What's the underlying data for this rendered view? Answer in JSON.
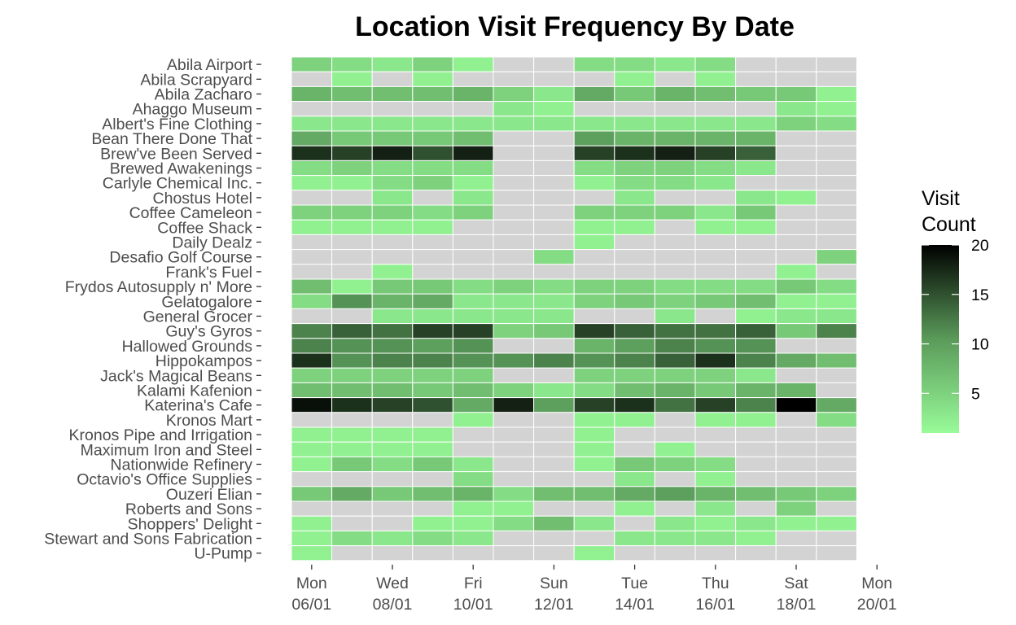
{
  "chart_data": {
    "type": "heatmap",
    "title": "Location Visit Frequency By Date",
    "xlabel": "",
    "ylabel": "",
    "dates": [
      "06/01",
      "07/01",
      "08/01",
      "09/01",
      "10/01",
      "11/01",
      "12/01",
      "13/01",
      "14/01",
      "15/01",
      "16/01",
      "17/01",
      "18/01",
      "19/01"
    ],
    "x_ticks": [
      {
        "day": "Mon",
        "date": "06/01",
        "index": 0
      },
      {
        "day": "Wed",
        "date": "08/01",
        "index": 2
      },
      {
        "day": "Fri",
        "date": "10/01",
        "index": 4
      },
      {
        "day": "Sun",
        "date": "12/01",
        "index": 6
      },
      {
        "day": "Tue",
        "date": "14/01",
        "index": 8
      },
      {
        "day": "Thu",
        "date": "16/01",
        "index": 10
      },
      {
        "day": "Sat",
        "date": "18/01",
        "index": 12
      },
      {
        "day": "Mon",
        "date": "20/01",
        "index": 14
      }
    ],
    "locations": [
      "Abila Airport",
      "Abila Scrapyard",
      "Abila Zacharo",
      "Ahaggo Museum",
      "Albert's Fine Clothing",
      "Bean There Done That",
      "Brew've Been Served",
      "Brewed Awakenings",
      "Carlyle Chemical Inc.",
      "Chostus Hotel",
      "Coffee Cameleon",
      "Coffee Shack",
      "Daily Dealz",
      "Desafio Golf Course",
      "Frank's Fuel",
      "Frydos Autosupply n' More",
      "Gelatogalore",
      "General Grocer",
      "Guy's Gyros",
      "Hallowed Grounds",
      "Hippokampos",
      "Jack's Magical Beans",
      "Kalami Kafenion",
      "Katerina's Cafe",
      "Kronos Mart",
      "Kronos Pipe and Irrigation",
      "Maximum Iron and Steel",
      "Nationwide Refinery",
      "Octavio's Office Supplies",
      "Ouzeri Elian",
      "Roberts and Sons",
      "Shoppers' Delight",
      "Stewart and Sons Fabrication",
      "U-Pump"
    ],
    "values": [
      [
        5,
        4,
        3,
        5,
        2,
        null,
        null,
        4,
        4,
        3,
        4,
        null,
        null,
        null
      ],
      [
        null,
        2,
        null,
        2,
        null,
        null,
        null,
        null,
        2,
        null,
        2,
        null,
        null,
        null
      ],
      [
        8,
        7,
        7,
        7,
        8,
        5,
        3,
        9,
        6,
        8,
        7,
        6,
        6,
        2
      ],
      [
        null,
        null,
        null,
        null,
        null,
        3,
        2,
        null,
        null,
        null,
        null,
        null,
        3,
        2
      ],
      [
        3,
        3,
        3,
        3,
        3,
        3,
        3,
        3,
        3,
        3,
        3,
        3,
        5,
        4
      ],
      [
        9,
        6,
        6,
        6,
        7,
        null,
        null,
        10,
        8,
        8,
        8,
        8,
        null,
        null
      ],
      [
        17,
        16,
        18,
        15,
        18,
        null,
        null,
        16,
        17,
        18,
        16,
        14,
        null,
        null
      ],
      [
        4,
        5,
        4,
        4,
        4,
        null,
        null,
        4,
        5,
        5,
        4,
        3,
        null,
        null
      ],
      [
        2,
        2,
        4,
        5,
        2,
        null,
        null,
        2,
        4,
        4,
        3,
        null,
        null,
        null
      ],
      [
        null,
        null,
        3,
        null,
        3,
        null,
        null,
        null,
        3,
        null,
        null,
        3,
        2,
        null
      ],
      [
        5,
        5,
        5,
        4,
        5,
        null,
        null,
        5,
        5,
        5,
        3,
        6,
        null,
        null
      ],
      [
        2,
        2,
        2,
        2,
        null,
        null,
        null,
        2,
        2,
        null,
        2,
        2,
        null,
        null
      ],
      [
        null,
        null,
        null,
        null,
        null,
        null,
        null,
        2,
        null,
        null,
        null,
        null,
        null,
        null
      ],
      [
        null,
        null,
        null,
        null,
        null,
        null,
        4,
        null,
        null,
        null,
        null,
        null,
        null,
        5
      ],
      [
        null,
        null,
        2,
        null,
        null,
        null,
        null,
        null,
        null,
        null,
        null,
        null,
        2,
        null
      ],
      [
        7,
        2,
        6,
        6,
        4,
        5,
        4,
        5,
        5,
        4,
        4,
        4,
        6,
        4
      ],
      [
        4,
        11,
        8,
        9,
        3,
        3,
        3,
        5,
        6,
        5,
        6,
        7,
        2,
        2
      ],
      [
        null,
        null,
        3,
        3,
        3,
        3,
        3,
        null,
        null,
        3,
        null,
        2,
        3,
        3
      ],
      [
        12,
        14,
        13,
        16,
        16,
        5,
        6,
        16,
        14,
        13,
        13,
        14,
        6,
        12
      ],
      [
        12,
        11,
        11,
        10,
        11,
        null,
        null,
        8,
        10,
        12,
        11,
        11,
        null,
        null
      ],
      [
        17,
        11,
        12,
        12,
        11,
        11,
        12,
        11,
        12,
        14,
        17,
        12,
        9,
        7
      ],
      [
        5,
        5,
        5,
        5,
        5,
        null,
        null,
        5,
        5,
        5,
        5,
        3,
        null,
        null
      ],
      [
        7,
        7,
        7,
        6,
        7,
        5,
        3,
        4,
        7,
        8,
        6,
        8,
        8,
        null
      ],
      [
        19,
        17,
        16,
        15,
        9,
        18,
        10,
        16,
        17,
        13,
        16,
        12,
        20,
        9
      ],
      [
        null,
        null,
        null,
        null,
        2,
        null,
        null,
        2,
        2,
        null,
        2,
        2,
        null,
        4
      ],
      [
        2,
        2,
        2,
        2,
        null,
        null,
        null,
        2,
        null,
        null,
        null,
        null,
        null,
        null
      ],
      [
        2,
        2,
        2,
        2,
        null,
        null,
        null,
        2,
        null,
        2,
        null,
        null,
        null,
        null
      ],
      [
        2,
        6,
        4,
        6,
        3,
        null,
        null,
        2,
        6,
        5,
        4,
        null,
        null,
        null
      ],
      [
        null,
        null,
        null,
        null,
        4,
        null,
        null,
        null,
        3,
        null,
        2,
        null,
        null,
        null
      ],
      [
        6,
        9,
        6,
        7,
        8,
        4,
        7,
        7,
        9,
        10,
        8,
        7,
        6,
        5
      ],
      [
        null,
        null,
        null,
        null,
        2,
        2,
        null,
        null,
        2,
        null,
        3,
        null,
        5,
        null
      ],
      [
        2,
        null,
        null,
        2,
        2,
        4,
        7,
        3,
        null,
        3,
        2,
        3,
        2,
        2
      ],
      [
        2,
        4,
        3,
        4,
        3,
        null,
        null,
        null,
        3,
        3,
        3,
        2,
        null,
        null
      ],
      [
        2,
        null,
        null,
        null,
        null,
        null,
        null,
        2,
        null,
        null,
        null,
        null,
        null,
        null
      ]
    ],
    "missing_color": "#d3d3d3",
    "legend": {
      "title_line1": "Visit",
      "title_line2": "Count",
      "min": 1,
      "max": 20,
      "breaks": [
        5,
        10,
        15,
        20
      ],
      "low_color": "#98fb98",
      "mid_color": "#5a9a5a",
      "high_color": "#000000",
      "placement": "right"
    }
  }
}
